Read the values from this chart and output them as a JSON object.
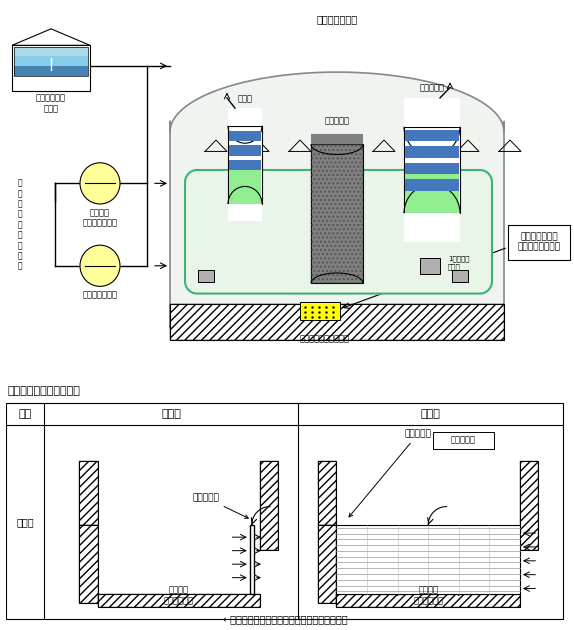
{
  "fig_width": 5.74,
  "fig_height": 6.3,
  "bg_color": "#ffffff",
  "label_tank": "燃料取替用水\nタンク",
  "label_spray_pump": "格納容器\nスプレイポンプ",
  "label_residual_pump": "余熱除去ポンプ",
  "label_eccs": "非\n常\n用\n炉\n心\n冷\n却\n系\n統",
  "label_containment": "原子炉格納容器",
  "label_pressurizer": "加圧器",
  "label_reactor": "原子炉容器",
  "label_steam_gen": "蒸気発生器",
  "label_coolant_pump": "1次冷却材\nポンプ",
  "label_sump_screen": "格納容器再循環\nサンプスクリーン",
  "label_sump": "格納容器再循環サンプ",
  "table_title": "スクリーン取替前後比較",
  "col_header1": "項目",
  "col_header2": "取替前",
  "col_header3": "取替後",
  "row_header": "概念図",
  "label_screen_before": "スクリーン",
  "label_sump_before": "格納容器\n再循環サンプ",
  "label_sump_after": "格納容器\n再循環サンプ",
  "label_screen_after": "スクリーン",
  "label_area_expand": "面積の拡大",
  "bottom_note": "←：格納容器再循環サンプへ流入する水の流れ",
  "lc": "#000000",
  "pipe_color": "#3cb371",
  "tank_water_top": "#add8e6",
  "tank_water_mid": "#87ceeb",
  "tank_water_bot": "#4682b4",
  "pump_color": "#ffff99",
  "vessel_gray": "#808080",
  "green_fill": "#c8e6c9",
  "screen_yellow": "#ffff00",
  "loop_fill": "#e8f5e8"
}
